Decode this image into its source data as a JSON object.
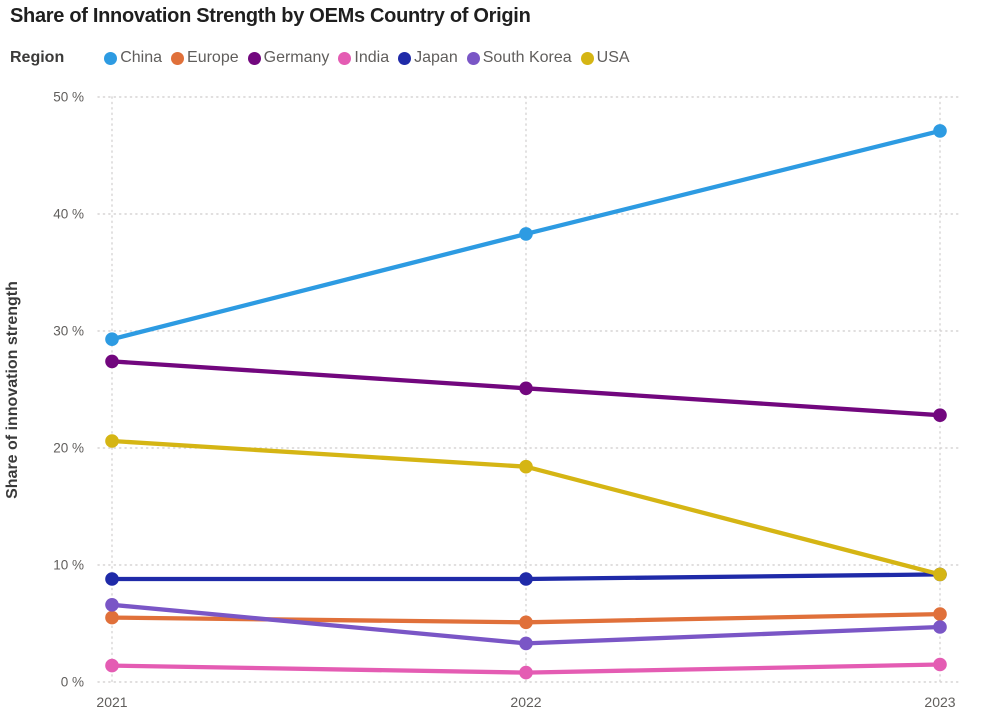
{
  "title": "Share of Innovation Strength by OEMs Country of Origin",
  "legend": {
    "label": "Region",
    "items": [
      {
        "name": "China",
        "color": "#2d9be2"
      },
      {
        "name": "Europe",
        "color": "#e0703a"
      },
      {
        "name": "Germany",
        "color": "#72077e"
      },
      {
        "name": "India",
        "color": "#e45cb3"
      },
      {
        "name": "Japan",
        "color": "#1f2aa8"
      },
      {
        "name": "South Korea",
        "color": "#7a56c6"
      },
      {
        "name": "USA",
        "color": "#d5b514"
      }
    ]
  },
  "chart_data": {
    "type": "line",
    "title": "Share of Innovation Strength by OEMs Country of Origin",
    "x": [
      "2021",
      "2022",
      "2023"
    ],
    "series": [
      {
        "name": "China",
        "color": "#2d9be2",
        "values": [
          29.3,
          38.3,
          47.1
        ]
      },
      {
        "name": "Europe",
        "color": "#e0703a",
        "values": [
          5.5,
          5.1,
          5.8
        ]
      },
      {
        "name": "Germany",
        "color": "#72077e",
        "values": [
          27.4,
          25.1,
          22.8
        ]
      },
      {
        "name": "India",
        "color": "#e45cb3",
        "values": [
          1.4,
          0.8,
          1.5
        ]
      },
      {
        "name": "Japan",
        "color": "#1f2aa8",
        "values": [
          8.8,
          8.8,
          9.2
        ]
      },
      {
        "name": "South Korea",
        "color": "#7a56c6",
        "values": [
          6.6,
          3.3,
          4.7
        ]
      },
      {
        "name": "USA",
        "color": "#d5b514",
        "values": [
          20.6,
          18.4,
          9.2
        ]
      }
    ],
    "xlabel": "",
    "ylabel": "Share of innovation strength",
    "ylim": [
      0,
      50
    ],
    "yticks": [
      "0 %",
      "10 %",
      "20 %",
      "30 %",
      "40 %",
      "50 %"
    ],
    "grid": true,
    "legend_position": "top",
    "legend_title": "Region"
  }
}
